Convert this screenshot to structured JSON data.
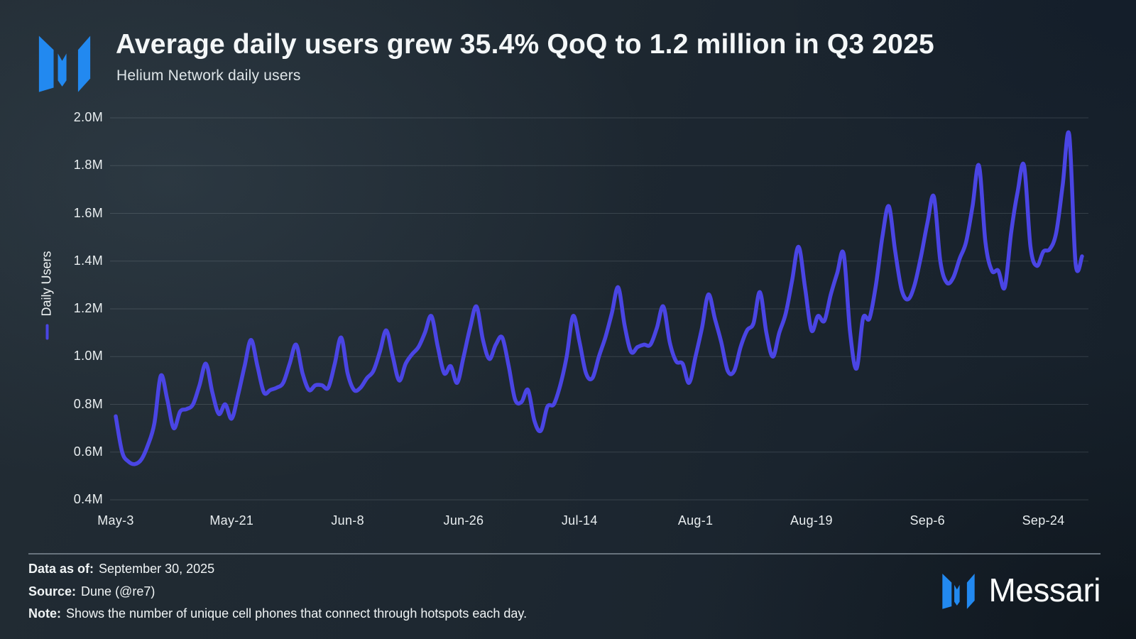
{
  "header": {
    "title": "Average daily users grew 35.4% QoQ to 1.2 million in Q3 2025",
    "subtitle": "Helium Network daily users"
  },
  "brand": {
    "name": "Messari",
    "mark_color": "#2289f0"
  },
  "footer": {
    "rows": [
      {
        "label": "Data as of:",
        "text": "September 30, 2025"
      },
      {
        "label": "Source:",
        "text": "Dune (@re7)"
      },
      {
        "label": "Note:",
        "text": "Shows the number of unique cell phones that connect through hotspots each day."
      }
    ]
  },
  "chart_data": {
    "type": "line",
    "title": "Average daily users grew 35.4% QoQ to 1.2 million in Q3 2025",
    "subtitle": "Helium Network daily users",
    "ylabel": "Daily Users",
    "xlabel": "",
    "units": "millions of users",
    "ylim": [
      0.4,
      2.0
    ],
    "grid": "horizontal",
    "legend_position": "left-rotated",
    "line_color": "#4a45e4",
    "y_ticks": {
      "labels": [
        "2.0M",
        "1.8M",
        "1.6M",
        "1.4M",
        "1.2M",
        "1.0M",
        "0.8M",
        "0.6M",
        "0.4M"
      ],
      "values": [
        2.0,
        1.8,
        1.6,
        1.4,
        1.2,
        1.0,
        0.8,
        0.6,
        0.4
      ]
    },
    "x_ticks": [
      {
        "label": "May-3",
        "day": 0
      },
      {
        "label": "May-21",
        "day": 18
      },
      {
        "label": "Jun-8",
        "day": 36
      },
      {
        "label": "Jun-26",
        "day": 54
      },
      {
        "label": "Jul-14",
        "day": 72
      },
      {
        "label": "Aug-1",
        "day": 90
      },
      {
        "label": "Aug-19",
        "day": 108
      },
      {
        "label": "Sep-6",
        "day": 126
      },
      {
        "label": "Sep-24",
        "day": 144
      }
    ],
    "series": [
      {
        "name": "Daily Users",
        "color": "#4a45e4",
        "sampling": "daily, May-3 2025 through Sep-30 2025, values in millions",
        "dates": [
          "May-3",
          "May-4",
          "May-5",
          "May-6",
          "May-7",
          "May-8",
          "May-9",
          "May-10",
          "May-11",
          "May-12",
          "May-13",
          "May-14",
          "May-15",
          "May-16",
          "May-17",
          "May-18",
          "May-19",
          "May-20",
          "May-21",
          "May-22",
          "May-23",
          "May-24",
          "May-25",
          "May-26",
          "May-27",
          "May-28",
          "May-29",
          "May-30",
          "May-31",
          "Jun-1",
          "Jun-2",
          "Jun-3",
          "Jun-4",
          "Jun-5",
          "Jun-6",
          "Jun-7",
          "Jun-8",
          "Jun-9",
          "Jun-10",
          "Jun-11",
          "Jun-12",
          "Jun-13",
          "Jun-14",
          "Jun-15",
          "Jun-16",
          "Jun-17",
          "Jun-18",
          "Jun-19",
          "Jun-20",
          "Jun-21",
          "Jun-22",
          "Jun-23",
          "Jun-24",
          "Jun-25",
          "Jun-26",
          "Jun-27",
          "Jun-28",
          "Jun-29",
          "Jun-30",
          "Jul-1",
          "Jul-2",
          "Jul-3",
          "Jul-4",
          "Jul-5",
          "Jul-6",
          "Jul-7",
          "Jul-8",
          "Jul-9",
          "Jul-10",
          "Jul-11",
          "Jul-12",
          "Jul-13",
          "Jul-14",
          "Jul-15",
          "Jul-16",
          "Jul-17",
          "Jul-18",
          "Jul-19",
          "Jul-20",
          "Jul-21",
          "Jul-22",
          "Jul-23",
          "Jul-24",
          "Jul-25",
          "Jul-26",
          "Jul-27",
          "Jul-28",
          "Jul-29",
          "Jul-30",
          "Jul-31",
          "Aug-1",
          "Aug-2",
          "Aug-3",
          "Aug-4",
          "Aug-5",
          "Aug-6",
          "Aug-7",
          "Aug-8",
          "Aug-9",
          "Aug-10",
          "Aug-11",
          "Aug-12",
          "Aug-13",
          "Aug-14",
          "Aug-15",
          "Aug-16",
          "Aug-17",
          "Aug-18",
          "Aug-19",
          "Aug-20",
          "Aug-21",
          "Aug-22",
          "Aug-23",
          "Aug-24",
          "Aug-25",
          "Aug-26",
          "Aug-27",
          "Aug-28",
          "Aug-29",
          "Aug-30",
          "Aug-31",
          "Sep-1",
          "Sep-2",
          "Sep-3",
          "Sep-4",
          "Sep-5",
          "Sep-6",
          "Sep-7",
          "Sep-8",
          "Sep-9",
          "Sep-10",
          "Sep-11",
          "Sep-12",
          "Sep-13",
          "Sep-14",
          "Sep-15",
          "Sep-16",
          "Sep-17",
          "Sep-18",
          "Sep-19",
          "Sep-20",
          "Sep-21",
          "Sep-22",
          "Sep-23",
          "Sep-24",
          "Sep-25",
          "Sep-26",
          "Sep-27",
          "Sep-28",
          "Sep-29",
          "Sep-30"
        ],
        "values": [
          0.75,
          0.6,
          0.56,
          0.55,
          0.57,
          0.63,
          0.72,
          0.92,
          0.82,
          0.7,
          0.77,
          0.78,
          0.8,
          0.88,
          0.97,
          0.85,
          0.76,
          0.8,
          0.74,
          0.84,
          0.96,
          1.07,
          0.96,
          0.85,
          0.86,
          0.87,
          0.89,
          0.97,
          1.05,
          0.93,
          0.86,
          0.88,
          0.88,
          0.87,
          0.97,
          1.08,
          0.93,
          0.86,
          0.87,
          0.91,
          0.94,
          1.02,
          1.11,
          1.0,
          0.9,
          0.97,
          1.01,
          1.04,
          1.1,
          1.17,
          1.04,
          0.93,
          0.96,
          0.89,
          1.0,
          1.12,
          1.21,
          1.07,
          0.99,
          1.05,
          1.08,
          0.96,
          0.82,
          0.81,
          0.86,
          0.73,
          0.69,
          0.79,
          0.8,
          0.88,
          1.0,
          1.17,
          1.06,
          0.93,
          0.91,
          1.0,
          1.08,
          1.18,
          1.29,
          1.13,
          1.02,
          1.04,
          1.05,
          1.05,
          1.12,
          1.21,
          1.06,
          0.98,
          0.97,
          0.89,
          1.0,
          1.12,
          1.26,
          1.16,
          1.06,
          0.94,
          0.94,
          1.04,
          1.11,
          1.14,
          1.27,
          1.1,
          1.0,
          1.1,
          1.18,
          1.32,
          1.46,
          1.29,
          1.11,
          1.17,
          1.15,
          1.26,
          1.35,
          1.43,
          1.1,
          0.95,
          1.16,
          1.16,
          1.3,
          1.5,
          1.63,
          1.44,
          1.28,
          1.24,
          1.3,
          1.42,
          1.56,
          1.67,
          1.4,
          1.31,
          1.33,
          1.41,
          1.48,
          1.63,
          1.8,
          1.48,
          1.36,
          1.36,
          1.29,
          1.52,
          1.69,
          1.8,
          1.46,
          1.38,
          1.44,
          1.45,
          1.52,
          1.72,
          1.93,
          1.39,
          1.42
        ]
      }
    ]
  }
}
